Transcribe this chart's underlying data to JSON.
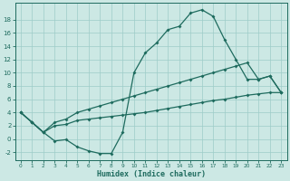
{
  "bg_color": "#cce8e4",
  "grid_color": "#9eccc8",
  "line_color": "#1e6b5e",
  "xlabel": "Humidex (Indice chaleur)",
  "xlim": [
    -0.5,
    23.5
  ],
  "ylim": [
    -3.2,
    20.5
  ],
  "xticks": [
    0,
    1,
    2,
    3,
    4,
    5,
    6,
    7,
    8,
    9,
    10,
    11,
    12,
    13,
    14,
    15,
    16,
    17,
    18,
    19,
    20,
    21,
    22,
    23
  ],
  "yticks": [
    -2,
    0,
    2,
    4,
    6,
    8,
    10,
    12,
    14,
    16,
    18
  ],
  "line1_x": [
    0,
    1,
    2,
    3,
    4,
    5,
    6,
    7,
    8,
    9,
    10,
    11,
    12,
    13,
    14,
    15,
    16,
    17,
    18,
    19,
    20,
    21,
    22,
    23
  ],
  "line1_y": [
    4.0,
    2.5,
    1.0,
    -0.3,
    -0.1,
    -1.2,
    -1.8,
    -2.2,
    -2.2,
    1.0,
    10.0,
    13.0,
    14.5,
    16.5,
    17.0,
    19.0,
    19.5,
    18.5,
    15.0,
    12.0,
    9.0,
    9.0,
    9.5,
    7.0
  ],
  "line2_x": [
    0,
    1,
    2,
    3,
    4,
    5,
    6,
    7,
    8,
    9,
    10,
    11,
    12,
    13,
    14,
    15,
    16,
    17,
    18,
    19,
    20,
    21,
    22,
    23
  ],
  "line2_y": [
    4.0,
    2.5,
    1.0,
    2.0,
    2.2,
    2.8,
    3.0,
    3.2,
    3.4,
    3.6,
    3.8,
    4.0,
    4.3,
    4.6,
    4.9,
    5.2,
    5.5,
    5.8,
    6.0,
    6.3,
    6.6,
    6.8,
    7.0,
    7.0
  ],
  "line3_x": [
    0,
    1,
    2,
    3,
    4,
    5,
    6,
    7,
    8,
    9,
    10,
    11,
    12,
    13,
    14,
    15,
    16,
    17,
    18,
    19,
    20,
    21,
    22,
    23
  ],
  "line3_y": [
    4.0,
    2.5,
    1.0,
    2.5,
    3.0,
    4.0,
    4.5,
    5.0,
    5.5,
    6.0,
    6.5,
    7.0,
    7.5,
    8.0,
    8.5,
    9.0,
    9.5,
    10.0,
    10.5,
    11.0,
    11.5,
    9.0,
    9.5,
    7.0
  ]
}
